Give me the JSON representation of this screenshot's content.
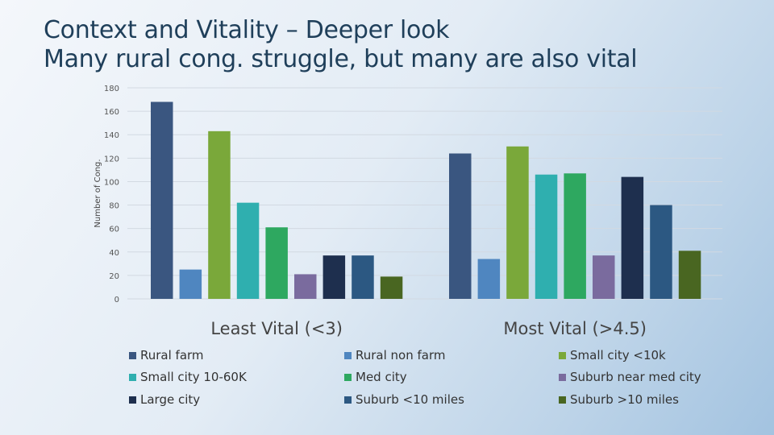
{
  "title_line1": "Context and Vitality – Deeper look",
  "title_line2": "Many rural cong. struggle, but many are also vital",
  "chart_data": {
    "type": "bar",
    "title": "",
    "xlabel": "",
    "ylabel": "Number of Cong.",
    "ylim": [
      0,
      180
    ],
    "yticks": [
      0,
      20,
      40,
      60,
      80,
      100,
      120,
      140,
      160,
      180
    ],
    "grid": true,
    "legend_position": "bottom",
    "categories": [
      "Least Vital (<3)",
      "Most Vital (>4.5)"
    ],
    "series": [
      {
        "name": "Rural farm",
        "color": "#3a5680",
        "values": [
          168,
          124
        ]
      },
      {
        "name": "Rural non farm",
        "color": "#4f86c0",
        "values": [
          25,
          34
        ]
      },
      {
        "name": "Small city <10k",
        "color": "#7aa83a",
        "values": [
          143,
          130
        ]
      },
      {
        "name": "Small city  10-60K",
        "color": "#2fafaf",
        "values": [
          82,
          106
        ]
      },
      {
        "name": "Med city",
        "color": "#2ea860",
        "values": [
          61,
          107
        ]
      },
      {
        "name": "Suburb near med city",
        "color": "#7a6b9e",
        "values": [
          21,
          37
        ]
      },
      {
        "name": "Large city",
        "color": "#1e2f4e",
        "values": [
          37,
          104
        ]
      },
      {
        "name": "Suburb <10 miles",
        "color": "#2c5882",
        "values": [
          37,
          80
        ]
      },
      {
        "name": "Suburb >10 miles",
        "color": "#496621",
        "values": [
          19,
          41
        ]
      }
    ]
  }
}
